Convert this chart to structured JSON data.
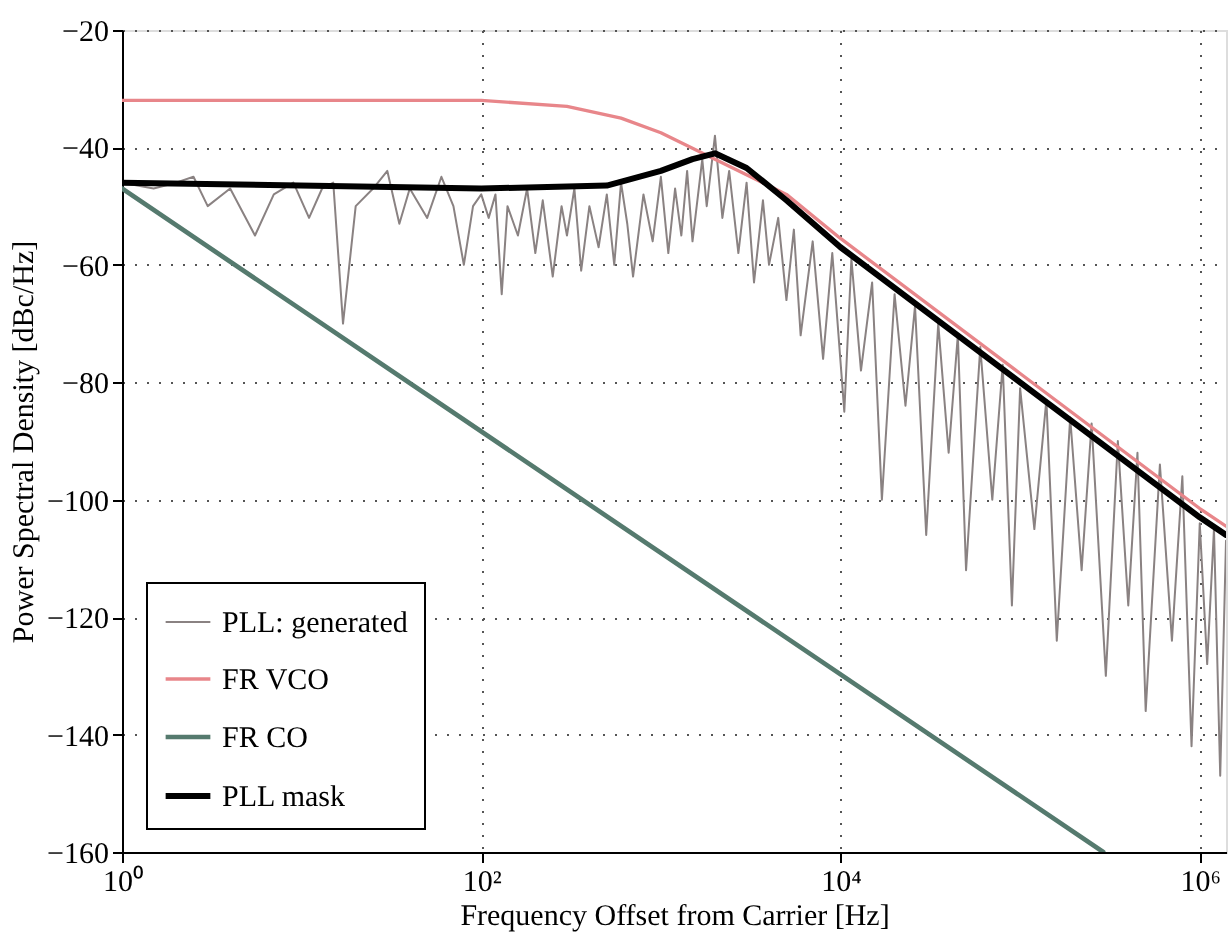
{
  "chart_data": {
    "type": "line",
    "xlabel": "Frequency Offset from Carrier [Hz]",
    "ylabel": "Power Spectral Density [dBc/Hz]",
    "log": "x",
    "xlim": [
      1,
      1400000
    ],
    "ylim": [
      -160,
      -20
    ],
    "xticks": [
      {
        "value": 1,
        "label": "10⁰"
      },
      {
        "value": 100,
        "label": "10²"
      },
      {
        "value": 10000,
        "label": "10⁴"
      },
      {
        "value": 1000000,
        "label": "10⁶"
      }
    ],
    "yticks": [
      -160,
      -140,
      -120,
      -100,
      -80,
      -60,
      -40,
      -20
    ],
    "grid": true,
    "legend": "bottom left",
    "line_style": "solid",
    "marker": "none",
    "series": [
      {
        "name": "PLL: generated",
        "color": "#8a8282",
        "x": [
          1,
          1.5,
          2,
          2.5,
          3,
          4,
          5.5,
          7,
          9,
          11,
          13,
          15,
          17,
          20,
          25,
          30,
          35,
          40,
          50,
          60,
          70,
          80,
          90,
          100,
          110,
          120,
          130,
          140,
          160,
          180,
          200,
          220,
          250,
          280,
          300,
          330,
          360,
          400,
          450,
          500,
          550,
          600,
          650,
          700,
          800,
          900,
          1000,
          1100,
          1200,
          1300,
          1400,
          1500,
          1700,
          1800,
          2000,
          2200,
          2400,
          2700,
          3000,
          3300,
          3700,
          4000,
          4500,
          5000,
          5500,
          6000,
          7000,
          8000,
          9000,
          10500,
          11500,
          13000,
          15000,
          17000,
          20000,
          23000,
          26000,
          30000,
          35000,
          40000,
          45000,
          50000,
          60000,
          70000,
          80000,
          90000,
          100000,
          120000,
          140000,
          160000,
          190000,
          220000,
          250000,
          300000,
          350000,
          400000,
          450000,
          500000,
          600000,
          700000,
          800000,
          900000,
          1000000,
          1100000,
          1200000,
          1300000,
          1400000
        ],
        "values": [
          -46,
          -47,
          -46,
          -45,
          -50,
          -47,
          -55,
          -48,
          -46,
          -52,
          -47,
          -46,
          -70,
          -50,
          -47,
          -44,
          -53,
          -47,
          -52,
          -45,
          -50,
          -60,
          -50,
          -48,
          -52,
          -48,
          -65,
          -50,
          -55,
          -47,
          -58,
          -49,
          -62,
          -50,
          -55,
          -47,
          -61,
          -50,
          -57,
          -48,
          -60,
          -46,
          -53,
          -62,
          -48,
          -56,
          -45,
          -58,
          -47,
          -55,
          -44,
          -56,
          -42,
          -50,
          -38,
          -52,
          -44,
          -58,
          -46,
          -63,
          -49,
          -60,
          -52,
          -66,
          -54,
          -72,
          -56,
          -76,
          -58,
          -85,
          -59,
          -78,
          -63,
          -100,
          -65,
          -84,
          -67,
          -106,
          -70,
          -92,
          -72,
          -112,
          -74,
          -100,
          -77,
          -118,
          -81,
          -105,
          -83,
          -124,
          -86,
          -112,
          -87,
          -130,
          -90,
          -118,
          -92,
          -136,
          -94,
          -124,
          -96,
          -142,
          -104,
          -128,
          -105,
          -147,
          -107
        ]
      },
      {
        "name": "FR VCO",
        "color": "#e8868a",
        "x": [
          1,
          100,
          300,
          600,
          1000,
          2000,
          5000,
          10000,
          100000,
          1000000,
          1400000
        ],
        "values": [
          -32,
          -32,
          -33,
          -35,
          -37.5,
          -42,
          -48,
          -55.5,
          -78.5,
          -101.5,
          -104.5
        ]
      },
      {
        "name": "FR CO",
        "color": "#557a6e",
        "x": [
          1,
          290000
        ],
        "values": [
          -47,
          -160
        ]
      },
      {
        "name": "PLL mask",
        "color": "#000000",
        "x": [
          1,
          100,
          500,
          1000,
          1500,
          2000,
          3000,
          5000,
          10000,
          100000,
          1000000,
          1400000
        ],
        "values": [
          -46,
          -47,
          -46.5,
          -44,
          -42,
          -41,
          -43.5,
          -49,
          -57,
          -80,
          -103,
          -106
        ]
      }
    ]
  }
}
